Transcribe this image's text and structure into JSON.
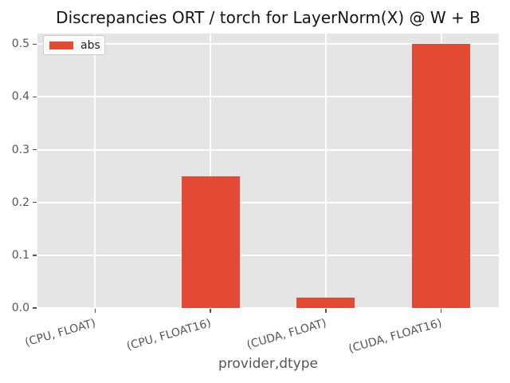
{
  "chart_data": {
    "type": "bar",
    "title": "Discrepancies ORT / torch for LayerNorm(X) @ W + B",
    "xlabel": "provider,dtype",
    "ylabel": "",
    "categories": [
      "(CPU, FLOAT)",
      "(CPU, FLOAT16)",
      "(CUDA, FLOAT)",
      "(CUDA, FLOAT16)"
    ],
    "series": [
      {
        "name": "abs",
        "color": "#e24a33",
        "values": [
          0.0,
          0.25,
          0.02,
          0.5
        ]
      }
    ],
    "ylim": [
      0.0,
      0.52
    ],
    "y_ticks": [
      0.0,
      0.1,
      0.2,
      0.3,
      0.4,
      0.5
    ],
    "y_tick_labels": [
      "0.0",
      "0.1",
      "0.2",
      "0.3",
      "0.4",
      "0.5"
    ],
    "x_tick_rotation": -16,
    "grid": true,
    "legend": {
      "position": "upper left",
      "entries": [
        "abs"
      ]
    }
  },
  "theme": {
    "plot_bg": "#e5e5e5",
    "grid_color": "#ffffff",
    "bar_color": "#e24a33",
    "tick_color": "#555555",
    "label_color": "#555555",
    "title_color": "#141414",
    "legend_bg": "rgba(255,255,255,0.85)",
    "legend_border": "#cfcfcf"
  }
}
